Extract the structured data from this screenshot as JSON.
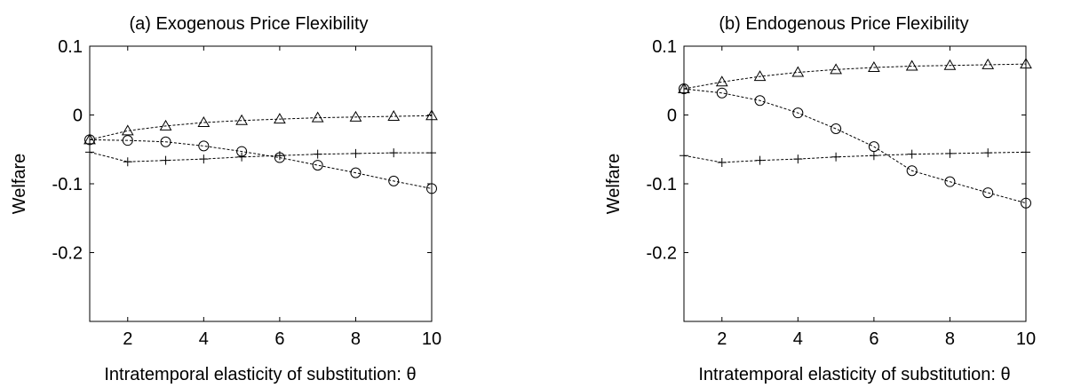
{
  "chart_data": [
    {
      "type": "line",
      "title": "(a) Exogenous Price Flexibility",
      "xlabel": "Intratemporal elasticity of substitution: θ",
      "ylabel": "Welfare",
      "xlim": [
        1,
        10
      ],
      "ylim": [
        -0.3,
        0.1
      ],
      "xticks": [
        2,
        4,
        6,
        8,
        10
      ],
      "yticks": [
        0.1,
        0,
        -0.1,
        -0.2
      ],
      "ytick_labels": [
        "0.1",
        "0",
        "-0.1",
        "-0.2"
      ],
      "grid": false,
      "x": [
        1,
        2,
        3,
        4,
        5,
        6,
        7,
        8,
        9,
        10
      ],
      "series": [
        {
          "marker": "triangle",
          "values": [
            -0.036,
            -0.023,
            -0.016,
            -0.011,
            -0.008,
            -0.006,
            -0.004,
            -0.003,
            -0.002,
            -0.001
          ]
        },
        {
          "marker": "circle",
          "values": [
            -0.036,
            -0.037,
            -0.039,
            -0.045,
            -0.053,
            -0.062,
            -0.073,
            -0.084,
            -0.096,
            -0.107
          ]
        },
        {
          "marker": "plus",
          "values": [
            -0.054,
            -0.068,
            -0.066,
            -0.064,
            -0.061,
            -0.059,
            -0.057,
            -0.056,
            -0.055,
            -0.055
          ]
        }
      ]
    },
    {
      "type": "line",
      "title": "(b) Endogenous Price Flexibility",
      "xlabel": "Intratemporal elasticity of substitution: θ",
      "ylabel": "Welfare",
      "xlim": [
        1,
        10
      ],
      "ylim": [
        -0.3,
        0.1
      ],
      "xticks": [
        2,
        4,
        6,
        8,
        10
      ],
      "yticks": [
        0.1,
        0,
        -0.1,
        -0.2
      ],
      "ytick_labels": [
        "0.1",
        "0",
        "-0.1",
        "-0.2"
      ],
      "grid": false,
      "x": [
        1,
        2,
        3,
        4,
        5,
        6,
        7,
        8,
        9,
        10
      ],
      "series": [
        {
          "marker": "triangle",
          "values": [
            0.038,
            0.048,
            0.056,
            0.062,
            0.066,
            0.069,
            0.071,
            0.072,
            0.073,
            0.074
          ]
        },
        {
          "marker": "circle",
          "values": [
            0.038,
            0.032,
            0.021,
            0.003,
            -0.02,
            -0.046,
            -0.081,
            -0.097,
            -0.113,
            -0.128
          ]
        },
        {
          "marker": "plus",
          "values": [
            -0.059,
            -0.069,
            -0.066,
            -0.064,
            -0.061,
            -0.059,
            -0.057,
            -0.056,
            -0.055,
            -0.054
          ]
        }
      ]
    }
  ]
}
